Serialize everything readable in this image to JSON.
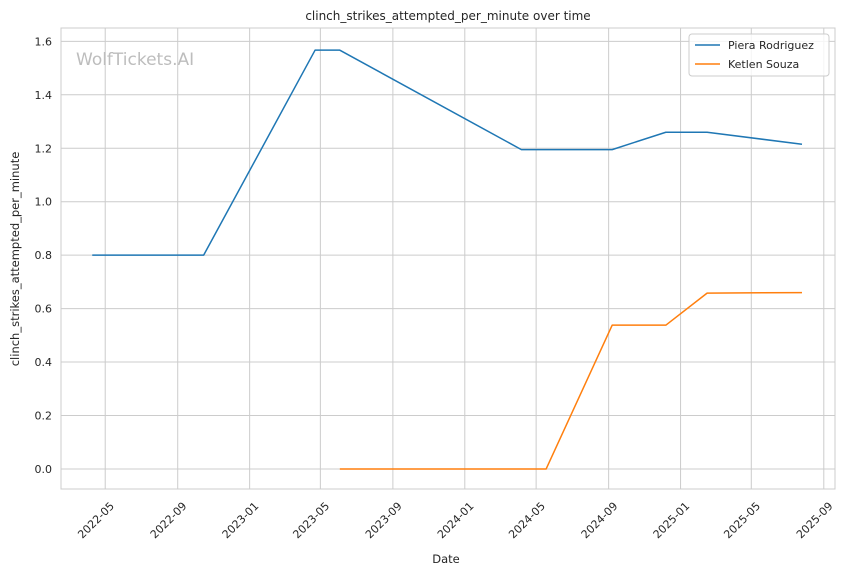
{
  "chart_data": {
    "type": "line",
    "title": "clinch_strikes_attempted_per_minute over time",
    "xlabel": "Date",
    "ylabel": "clinch_strikes_attempted_per_minute",
    "watermark": "WolfTickets.AI",
    "x_ticks": [
      "2022-05",
      "2022-09",
      "2023-01",
      "2023-05",
      "2023-09",
      "2024-01",
      "2024-05",
      "2024-09",
      "2025-01",
      "2025-05",
      "2025-09"
    ],
    "y_ticks": [
      "0.0",
      "0.2",
      "0.4",
      "0.6",
      "0.8",
      "1.0",
      "1.2",
      "1.4",
      "1.6"
    ],
    "xlim": [
      "2022-02-15",
      "2025-09-20"
    ],
    "ylim": [
      -0.075,
      1.65
    ],
    "grid": true,
    "legend_position": "top-right",
    "series": [
      {
        "name": "Piera Rodriguez",
        "color": "#1f77b4",
        "points": [
          {
            "x": "2022-04-09",
            "y": 0.8
          },
          {
            "x": "2022-10-15",
            "y": 0.8
          },
          {
            "x": "2023-04-22",
            "y": 1.567
          },
          {
            "x": "2023-06-03",
            "y": 1.567
          },
          {
            "x": "2024-04-06",
            "y": 1.195
          },
          {
            "x": "2024-09-07",
            "y": 1.195
          },
          {
            "x": "2024-12-07",
            "y": 1.26
          },
          {
            "x": "2025-02-15",
            "y": 1.26
          },
          {
            "x": "2025-07-26",
            "y": 1.215
          }
        ]
      },
      {
        "name": "Ketlen Souza",
        "color": "#ff7f0e",
        "points": [
          {
            "x": "2023-06-03",
            "y": 0.0
          },
          {
            "x": "2024-05-18",
            "y": 0.0
          },
          {
            "x": "2024-09-07",
            "y": 0.538
          },
          {
            "x": "2024-12-07",
            "y": 0.538
          },
          {
            "x": "2025-02-15",
            "y": 0.658
          },
          {
            "x": "2025-07-26",
            "y": 0.66
          }
        ]
      }
    ]
  }
}
